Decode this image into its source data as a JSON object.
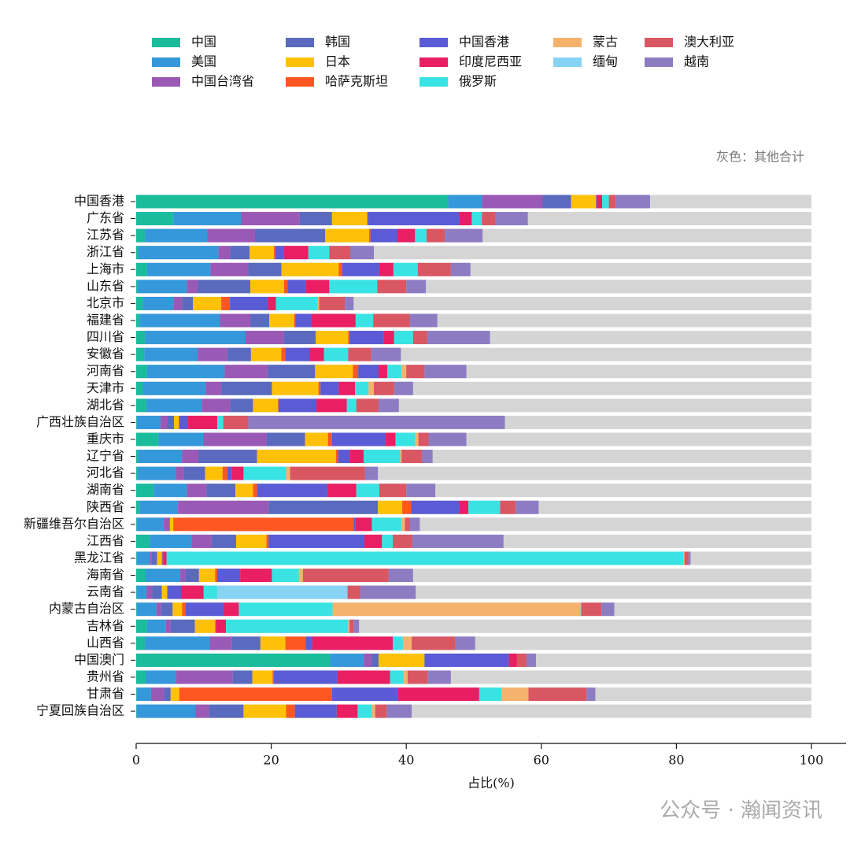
{
  "chart_data": {
    "type": "stacked-barh",
    "annotation": "灰色：其他合计",
    "xlabel": "占比(%)",
    "watermark": "公众号 · 瀚闻资讯",
    "xlim": [
      0,
      100
    ],
    "xticks": [
      0,
      20,
      40,
      60,
      80,
      100
    ],
    "remainder_color": "#d5d5d5",
    "categories": [
      "中国香港",
      "广东省",
      "江苏省",
      "浙江省",
      "上海市",
      "山东省",
      "北京市",
      "福建省",
      "四川省",
      "安徽省",
      "河南省",
      "天津市",
      "湖北省",
      "广西壮族自治区",
      "重庆市",
      "辽宁省",
      "河北省",
      "湖南省",
      "陕西省",
      "新疆维吾尔自治区",
      "江西省",
      "黑龙江省",
      "海南省",
      "云南省",
      "内蒙古自治区",
      "吉林省",
      "山西省",
      "中国澳门",
      "贵州省",
      "甘肃省",
      "宁夏回族自治区"
    ],
    "series": [
      {
        "name": "中国",
        "color": "#1abc9c",
        "values": [
          46.2,
          5.5,
          1.3,
          0.3,
          1.6,
          0.2,
          1.0,
          0.5,
          1.3,
          1.2,
          1.6,
          1.0,
          1.5,
          0.1,
          3.3,
          0.3,
          0.2,
          2.6,
          0.5,
          0.1,
          2.0,
          0.1,
          1.4,
          0.1,
          0.1,
          1.6,
          1.3,
          28.7,
          1.4,
          0.1,
          0.1
        ]
      },
      {
        "name": "美国",
        "color": "#3498db",
        "values": [
          5.0,
          10.0,
          9.2,
          11.9,
          9.4,
          7.3,
          4.5,
          11.9,
          14.9,
          7.9,
          11.5,
          9.3,
          8.2,
          3.5,
          6.6,
          6.5,
          5.7,
          4.9,
          5.7,
          4.0,
          6.2,
          1.9,
          5.1,
          1.4,
          2.9,
          2.8,
          9.6,
          5.0,
          4.5,
          2.1,
          8.7
        ]
      },
      {
        "name": "中国台湾省",
        "color": "#9b59b6",
        "values": [
          9.0,
          8.7,
          7.1,
          1.7,
          5.6,
          1.6,
          1.3,
          4.5,
          5.7,
          4.4,
          6.4,
          2.3,
          4.2,
          1.0,
          9.4,
          2.4,
          1.2,
          2.9,
          13.4,
          0.8,
          3.0,
          0.3,
          0.8,
          0.9,
          0.7,
          0.7,
          3.3,
          1.2,
          8.4,
          1.9,
          2.0
        ]
      },
      {
        "name": "韩国",
        "color": "#5a6abf",
        "values": [
          4.2,
          4.8,
          10.4,
          2.9,
          4.9,
          7.8,
          1.6,
          2.8,
          4.7,
          3.5,
          7.0,
          7.5,
          3.4,
          1.0,
          5.7,
          8.7,
          3.1,
          4.3,
          16.2,
          0.1,
          3.6,
          0.8,
          2.0,
          1.4,
          1.7,
          3.6,
          4.2,
          1.0,
          2.9,
          1.0,
          5.1
        ]
      },
      {
        "name": "日本",
        "color": "#ffc107",
        "values": [
          3.7,
          5.2,
          6.5,
          3.6,
          8.5,
          5.0,
          4.2,
          3.7,
          4.8,
          4.5,
          5.6,
          6.9,
          3.7,
          0.7,
          3.4,
          11.7,
          2.6,
          2.6,
          3.6,
          0.5,
          4.5,
          0.7,
          2.4,
          0.8,
          1.4,
          3.0,
          3.7,
          6.8,
          3.0,
          1.3,
          6.3
        ]
      },
      {
        "name": "哈萨克斯坦",
        "color": "#ff5722",
        "values": [
          0,
          0.1,
          0.2,
          0.2,
          0.5,
          0.5,
          1.3,
          0.2,
          0.2,
          0.6,
          0.8,
          0.3,
          0.1,
          0.1,
          0.6,
          0.3,
          0.7,
          0.6,
          1.3,
          26.7,
          0.3,
          0.1,
          0.3,
          0,
          0.5,
          0.1,
          3.0,
          0,
          0.2,
          22.6,
          1.3
        ]
      },
      {
        "name": "中国香港",
        "color": "#5b5bd6",
        "values": [
          0.1,
          13.5,
          4.0,
          1.3,
          5.5,
          2.7,
          5.6,
          2.4,
          5.1,
          3.6,
          3.0,
          2.7,
          5.6,
          1.3,
          7.9,
          1.7,
          0.7,
          10.4,
          7.1,
          0.3,
          14.2,
          0.1,
          3.4,
          2.1,
          5.7,
          0,
          1.0,
          12.5,
          9.4,
          9.8,
          6.2
        ]
      },
      {
        "name": "印度尼西亚",
        "color": "#e91e63",
        "values": [
          0.8,
          1.9,
          2.6,
          3.6,
          2.1,
          3.5,
          1.2,
          6.5,
          1.5,
          2.1,
          1.3,
          2.4,
          4.5,
          4.3,
          1.5,
          2.1,
          1.7,
          4.3,
          1.4,
          2.4,
          2.6,
          0.5,
          4.7,
          3.3,
          2.2,
          1.5,
          11.9,
          1.2,
          7.8,
          12.0,
          3.1
        ]
      },
      {
        "name": "俄罗斯",
        "color": "#3ae3e3",
        "values": [
          1.0,
          1.5,
          1.7,
          3.1,
          3.6,
          7.1,
          6.2,
          2.6,
          2.8,
          3.6,
          2.1,
          2.0,
          1.4,
          0.9,
          2.9,
          5.4,
          6.3,
          3.4,
          4.7,
          4.4,
          1.6,
          76.5,
          4.0,
          2.0,
          13.9,
          18.1,
          1.5,
          0,
          2.0,
          3.3,
          2.1
        ]
      },
      {
        "name": "蒙古",
        "color": "#f4b26d",
        "values": [
          0,
          0,
          0,
          0,
          0,
          0,
          0.2,
          0,
          0,
          0,
          0.7,
          0.8,
          0,
          0,
          0.5,
          0.2,
          0.6,
          0,
          0,
          0.5,
          0,
          0.2,
          0.6,
          0,
          36.7,
          0.2,
          1.3,
          0,
          0.6,
          4.0,
          0.5
        ]
      },
      {
        "name": "缅甸",
        "color": "#87d3f3",
        "values": [
          0,
          0,
          0,
          0,
          0,
          0,
          0,
          0,
          0,
          0,
          0,
          0,
          0,
          0,
          0,
          0,
          0,
          0,
          0,
          0,
          0,
          0,
          0,
          19.3,
          0.1,
          0,
          0,
          0,
          0,
          0,
          0
        ]
      },
      {
        "name": "澳大利亚",
        "color": "#d95763",
        "values": [
          1.0,
          2.0,
          2.7,
          3.1,
          4.9,
          4.3,
          3.8,
          5.4,
          2.1,
          3.4,
          2.7,
          3.0,
          3.3,
          3.7,
          1.5,
          3.0,
          11.1,
          4.0,
          2.3,
          0.7,
          2.9,
          0.6,
          12.7,
          1.9,
          3.0,
          0.6,
          6.4,
          1.4,
          3.0,
          8.6,
          1.7
        ]
      },
      {
        "name": "越南",
        "color": "#8e7cc3",
        "values": [
          5.1,
          4.8,
          5.6,
          3.5,
          2.9,
          2.9,
          1.3,
          4.1,
          9.3,
          4.4,
          6.2,
          2.8,
          3.0,
          38.0,
          5.6,
          1.6,
          1.9,
          4.3,
          3.4,
          1.5,
          13.5,
          0.3,
          3.6,
          8.2,
          1.9,
          0.8,
          3.0,
          1.4,
          3.4,
          1.3,
          3.7
        ]
      }
    ]
  }
}
